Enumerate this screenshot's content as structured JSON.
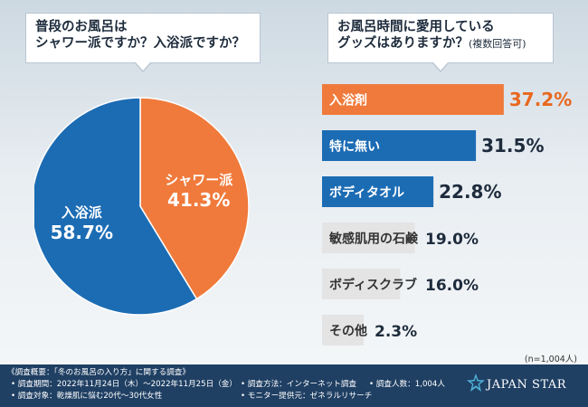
{
  "questions": {
    "q1_line1": "普段のお風呂は",
    "q1_line2": "シャワー派ですか？入浴派ですか？",
    "q2_line1": "お風呂時間に愛用している",
    "q2_line2": "グッズはありますか？",
    "q2_note": "(複数回答可)"
  },
  "chart_data": [
    {
      "type": "pie",
      "title": "普段のお風呂はシャワー派ですか？入浴派ですか？",
      "categories": [
        "シャワー派",
        "入浴派"
      ],
      "values": [
        41.3,
        58.7
      ],
      "value_labels": [
        "41.3%",
        "58.7%"
      ],
      "colors": [
        "#f07a3b",
        "#1c6cb4"
      ]
    },
    {
      "type": "bar",
      "orientation": "horizontal",
      "title": "お風呂時間に愛用しているグッズはありますか？(複数回答可)",
      "categories": [
        "入浴剤",
        "特に無い",
        "ボディタオル",
        "敏感肌用の石鹸",
        "ボディスクラブ",
        "その他"
      ],
      "values": [
        37.2,
        31.5,
        22.8,
        19.0,
        16.0,
        2.3
      ],
      "value_labels": [
        "37.2%",
        "31.5%",
        "22.8%",
        "19.0%",
        "16.0%",
        "2.3%"
      ],
      "colors": [
        "#f07a3b",
        "#1c6cb4",
        "#1c6cb4",
        "#e4e4e4",
        "#e4e4e4",
        "#e4e4e4"
      ],
      "text_colors": [
        "#ffffff",
        "#ffffff",
        "#ffffff",
        "#333333",
        "#333333",
        "#333333"
      ],
      "xlim": [
        0,
        40
      ]
    }
  ],
  "sample_note": "(n=1,004人)",
  "footer": {
    "title": "《調査概要：「冬のお風呂の入り方」に関する調査》",
    "period": "• 調査期間：2022年11月24日（木）～2022年11月25日（金）",
    "target": "• 調査対象：乾燥肌に悩む20代～30代女性",
    "method": "• 調査方法：インターネット調査",
    "provider": "• モニター提供元：ゼネラルリサーチ",
    "count": "• 調査人数：1,004人",
    "logo_text": "JAPAN STAR"
  }
}
